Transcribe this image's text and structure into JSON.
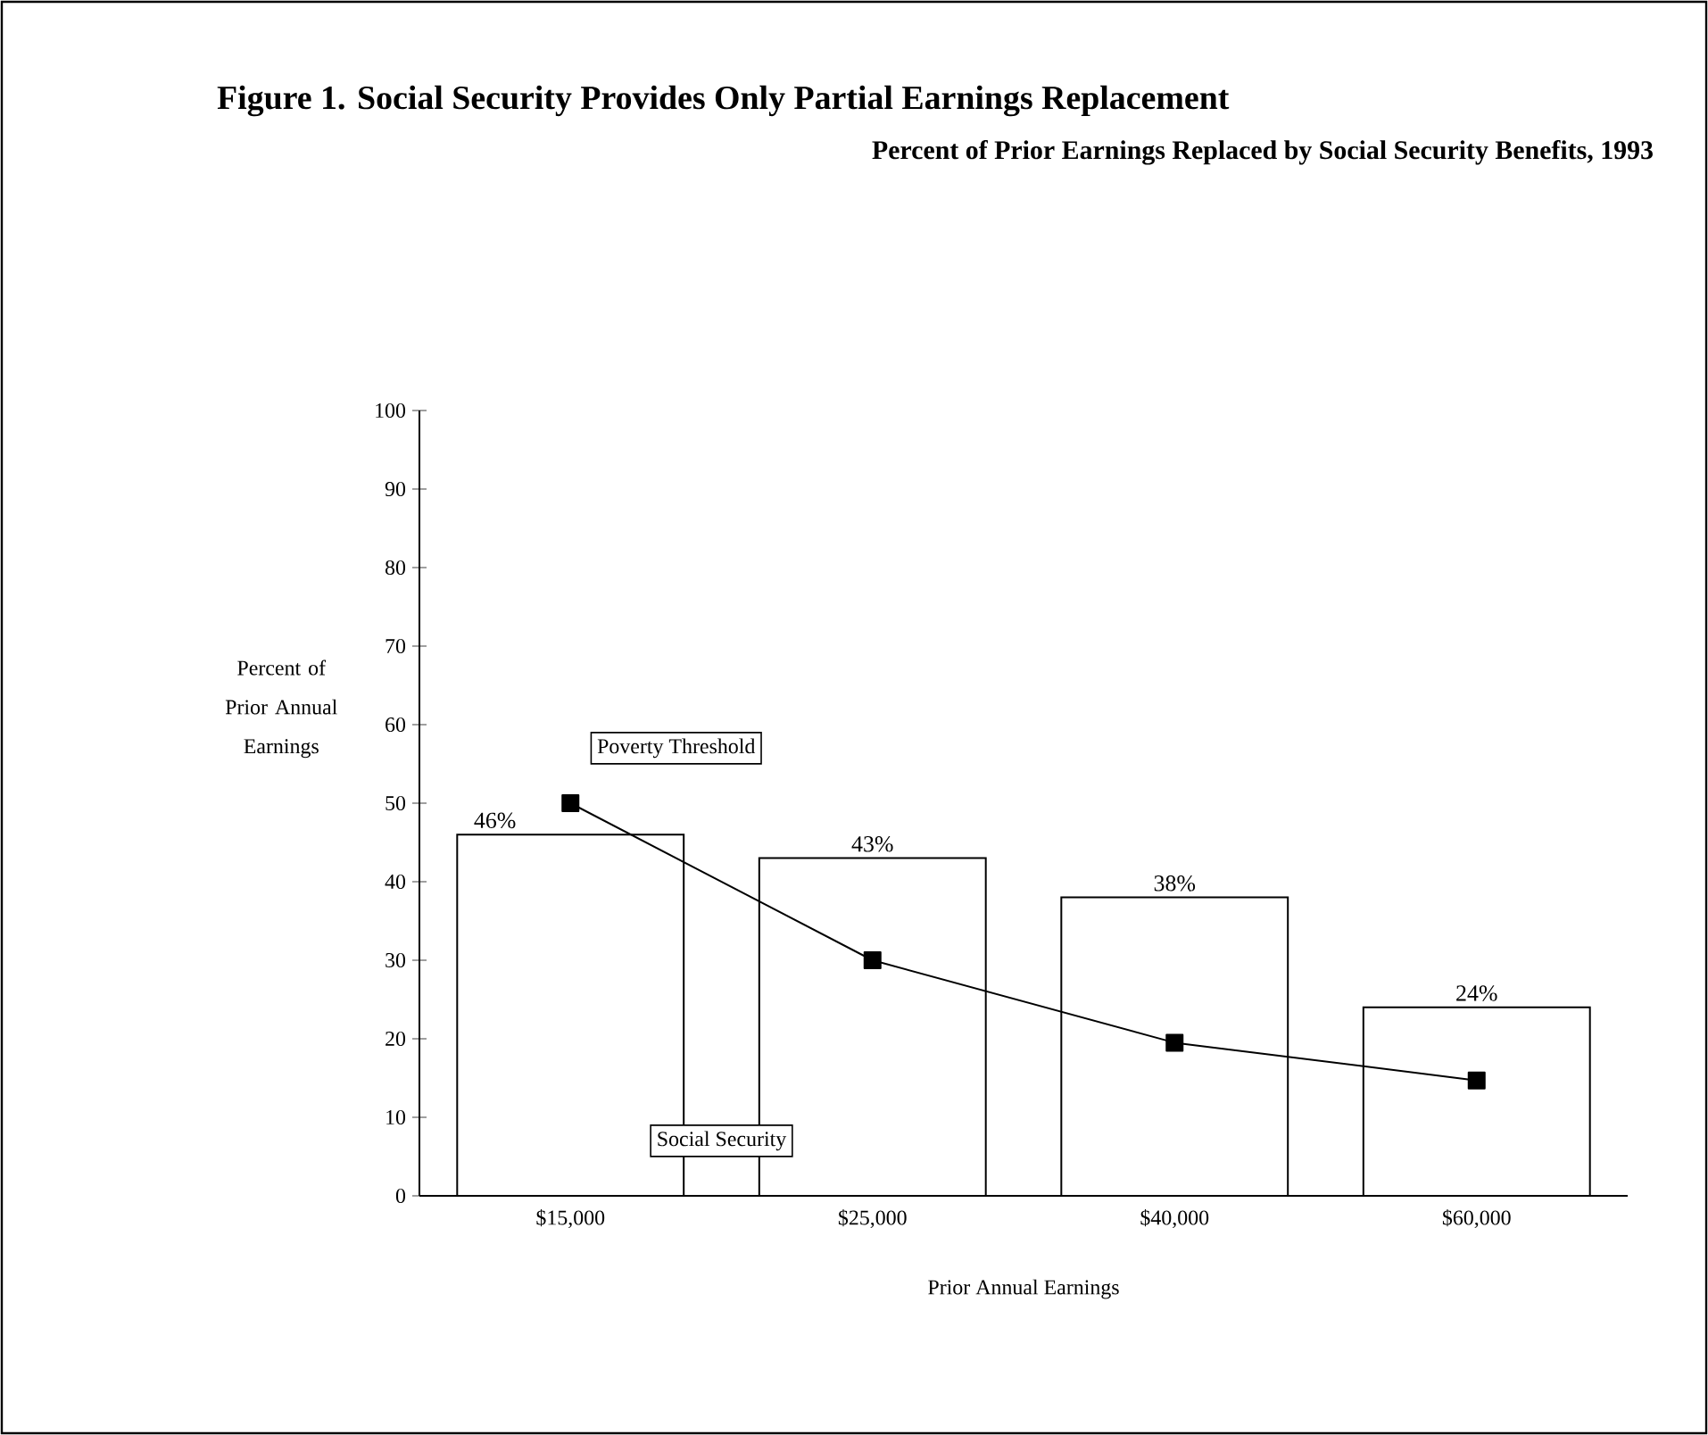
{
  "chart_data": {
    "type": "bar",
    "title": "Figure 1.  Social Security Provides Only Partial Earnings Replacement",
    "subtitle": "Percent of Prior Earnings Replaced by Social Security Benefits, 1993",
    "xlabel": "Prior Annual Earnings",
    "ylabel": "Percent of Prior Annual Earnings",
    "categories": [
      "$15,000",
      "$25,000",
      "$40,000",
      "$60,000"
    ],
    "series": [
      {
        "name": "Social Security",
        "color": "#ffffff",
        "values": [
          46,
          43,
          38,
          24
        ],
        "value_labels": [
          "46%",
          "43%",
          "38%",
          "24%"
        ]
      },
      {
        "name": "Poverty Threshold",
        "type": "line",
        "color": "#000000",
        "values": [
          50,
          30,
          19.5,
          14.7
        ],
        "marker": "square"
      }
    ],
    "ylim": [
      0,
      100
    ],
    "yticks": [
      0,
      10,
      20,
      30,
      40,
      50,
      60,
      70,
      80,
      90,
      100
    ],
    "grid": false
  }
}
